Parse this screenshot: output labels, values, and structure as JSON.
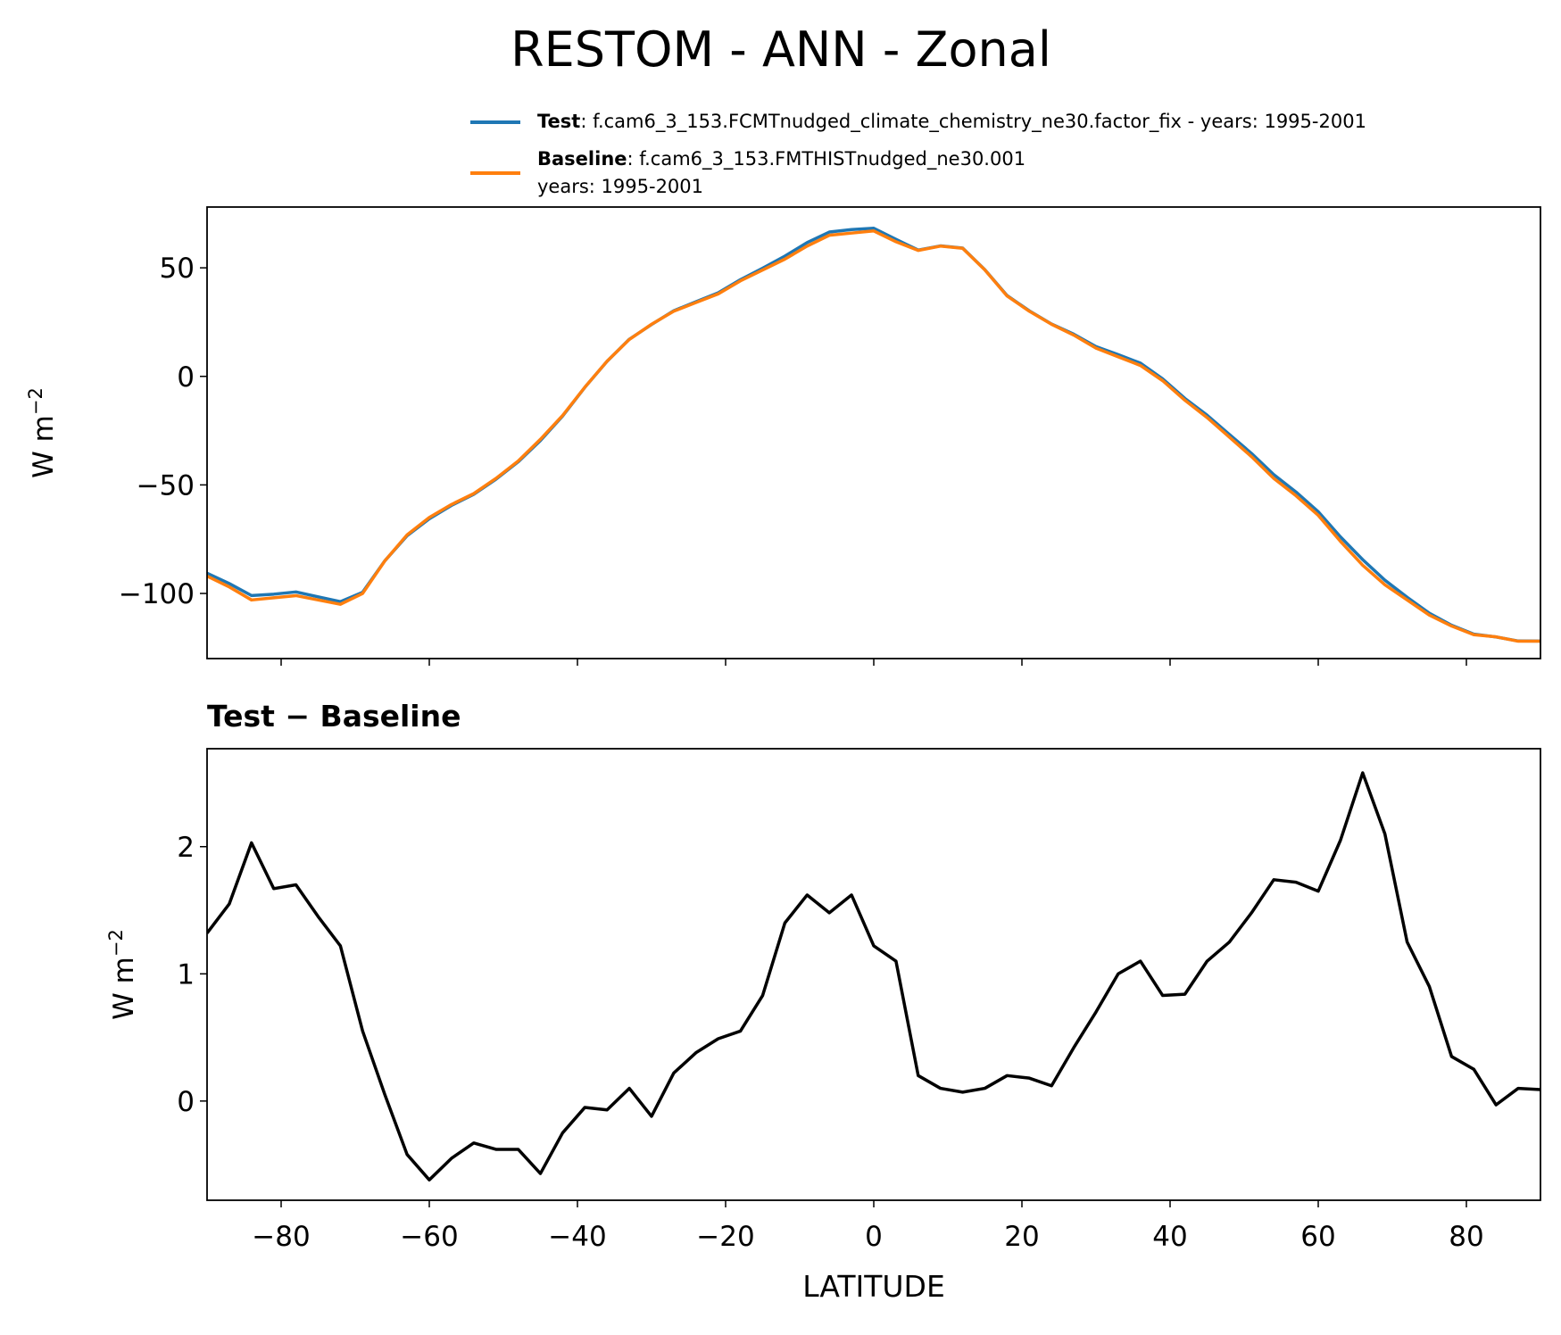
{
  "title": "RESTOM - ANN - Zonal",
  "chart_data": [
    {
      "type": "line",
      "ylabel": "W m",
      "ylabel_sup": "−2",
      "xlim": [
        -90,
        90
      ],
      "ylim": [
        -130,
        78
      ],
      "yticks": [
        {
          "value": -100,
          "label": "−100"
        },
        {
          "value": -50,
          "label": "−50"
        },
        0,
        50
      ],
      "x": [
        -90,
        -87,
        -84,
        -81,
        -78,
        -75,
        -72,
        -69,
        -66,
        -63,
        -60,
        -57,
        -54,
        -51,
        -48,
        -45,
        -42,
        -39,
        -36,
        -33,
        -30,
        -27,
        -24,
        -21,
        -18,
        -15,
        -12,
        -9,
        -6,
        -3,
        0,
        3,
        6,
        9,
        12,
        15,
        18,
        21,
        24,
        27,
        30,
        33,
        36,
        39,
        42,
        45,
        48,
        51,
        54,
        57,
        60,
        63,
        66,
        69,
        72,
        75,
        78,
        81,
        84,
        87,
        90
      ],
      "series": [
        {
          "name": "Test",
          "color": "#1f77b4",
          "label_lines": [
            ": f.cam6_3_153.FCMTnudged_climate_chemistry_ne30.factor_fix - years: 1995-2001"
          ],
          "values": [
            -90.68,
            -95.45,
            -100.97,
            -100.33,
            -99.3,
            -101.55,
            -103.78,
            -99.45,
            -84.95,
            -73.42,
            -65.62,
            -59.45,
            -54.33,
            -47.38,
            -39.38,
            -29.57,
            -18.25,
            -5.05,
            6.93,
            17.1,
            23.88,
            30.22,
            34.38,
            38.49,
            44.55,
            49.83,
            55.4,
            61.62,
            66.48,
            67.62,
            68.22,
            63.1,
            58.2,
            60.1,
            59.07,
            49.1,
            37.2,
            30.18,
            24.12,
            19.42,
            13.7,
            10.0,
            6.1,
            -1.17,
            -10.16,
            -17.9,
            -26.75,
            -35.52,
            -45.26,
            -53.28,
            -62.35,
            -73.95,
            -84.42,
            -93.9,
            -101.75,
            -109.1,
            -114.65,
            -118.75,
            -120.03,
            -121.9,
            -121.91
          ]
        },
        {
          "name": "Baseline",
          "color": "#ff7f0e",
          "label_lines": [
            ": f.cam6_3_153.FMTHISTnudged_ne30.001",
            "years: 1995-2001"
          ],
          "values": [
            -92,
            -97,
            -103,
            -102,
            -101,
            -103,
            -105,
            -100,
            -85,
            -73,
            -65,
            -59,
            -54,
            -47,
            -39,
            -29,
            -18,
            -5,
            7,
            17,
            24,
            30,
            34,
            38,
            44,
            49,
            54,
            60,
            65,
            66,
            67,
            62,
            58,
            60,
            59,
            49,
            37,
            30,
            24,
            19,
            13,
            9,
            5,
            -2,
            -11,
            -19,
            -28,
            -37,
            -47,
            -55,
            -64,
            -76,
            -87,
            -96,
            -103,
            -110,
            -115,
            -119,
            -120,
            -122,
            -122
          ]
        }
      ]
    },
    {
      "type": "line",
      "title": "Test − Baseline",
      "ylabel": "W m",
      "ylabel_sup": "−2",
      "xlabel": "LATITUDE",
      "xlim": [
        -90,
        90
      ],
      "xticks": [
        {
          "value": -80,
          "label": "−80"
        },
        {
          "value": -60,
          "label": "−60"
        },
        {
          "value": -40,
          "label": "−40"
        },
        {
          "value": -20,
          "label": "−20"
        },
        0,
        20,
        40,
        60,
        80
      ],
      "ylim": [
        -0.78,
        2.77
      ],
      "yticks": [
        0,
        1,
        2
      ],
      "x": [
        -90,
        -87,
        -84,
        -81,
        -78,
        -75,
        -72,
        -69,
        -66,
        -63,
        -60,
        -57,
        -54,
        -51,
        -48,
        -45,
        -42,
        -39,
        -36,
        -33,
        -30,
        -27,
        -24,
        -21,
        -18,
        -15,
        -12,
        -9,
        -6,
        -3,
        0,
        3,
        6,
        9,
        12,
        15,
        18,
        21,
        24,
        27,
        30,
        33,
        36,
        39,
        42,
        45,
        48,
        51,
        54,
        57,
        60,
        63,
        66,
        69,
        72,
        75,
        78,
        81,
        84,
        87,
        90
      ],
      "series": [
        {
          "color": "#000000",
          "values": [
            1.32,
            1.55,
            2.03,
            1.67,
            1.7,
            1.45,
            1.22,
            0.55,
            0.05,
            -0.42,
            -0.62,
            -0.45,
            -0.33,
            -0.38,
            -0.38,
            -0.57,
            -0.25,
            -0.05,
            -0.07,
            0.1,
            -0.12,
            0.22,
            0.38,
            0.49,
            0.55,
            0.83,
            1.4,
            1.62,
            1.48,
            1.62,
            1.22,
            1.1,
            0.2,
            0.1,
            0.07,
            0.1,
            0.2,
            0.18,
            0.12,
            0.42,
            0.7,
            1.0,
            1.1,
            0.83,
            0.84,
            1.1,
            1.25,
            1.48,
            1.74,
            1.72,
            1.65,
            2.05,
            2.58,
            2.1,
            1.25,
            0.9,
            0.35,
            0.25,
            -0.03,
            0.1,
            0.09
          ]
        }
      ]
    }
  ]
}
